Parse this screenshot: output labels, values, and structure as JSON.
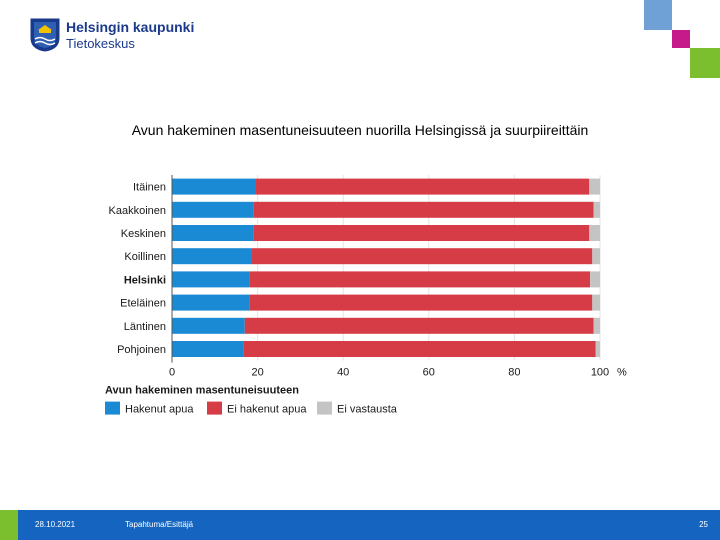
{
  "header": {
    "org_name": "Helsingin kaupunki",
    "org_unit": "Tietokeskus"
  },
  "colors": {
    "brand_blue": "#1a3a8c",
    "deco_blue": "#6fa1d6",
    "deco_magenta": "#c71a8a",
    "deco_green": "#7cbf2e",
    "footer_blue": "#1565c0"
  },
  "slide_title": "Avun hakeminen masentuneisuuteen nuorilla Helsingissä ja suurpiireittäin",
  "chart_data": {
    "type": "bar",
    "orientation": "horizontal",
    "stacked": true,
    "categories": [
      "Itäinen",
      "Kaakkoinen",
      "Keskinen",
      "Koillinen",
      "Helsinki",
      "Eteläinen",
      "Läntinen",
      "Pohjoinen"
    ],
    "bold_category": "Helsinki",
    "series": [
      {
        "name": "Hakenut apua",
        "color": "#1a8ad4",
        "values": [
          19.5,
          19,
          19,
          18.7,
          18.2,
          18.2,
          17,
          16.8
        ]
      },
      {
        "name": "Ei hakenut apua",
        "color": "#d63c46",
        "values": [
          78,
          79.5,
          78.5,
          79.5,
          79.5,
          80,
          81.5,
          82.2
        ]
      },
      {
        "name": "Ei vastausta",
        "color": "#c4c4c4",
        "values": [
          2.5,
          1.5,
          2.5,
          1.8,
          2.3,
          1.8,
          1.5,
          1
        ]
      }
    ],
    "x_ticks": [
      0,
      20,
      40,
      60,
      80,
      100
    ],
    "x_unit": "%",
    "xlim": [
      0,
      100
    ],
    "legend_title": "Avun hakeminen masentuneisuuteen",
    "legend_position": "bottom-left",
    "grid": true
  },
  "footer": {
    "date": "28.10.2021",
    "event": "Tapahtuma/Esittäjä",
    "page": "25"
  }
}
